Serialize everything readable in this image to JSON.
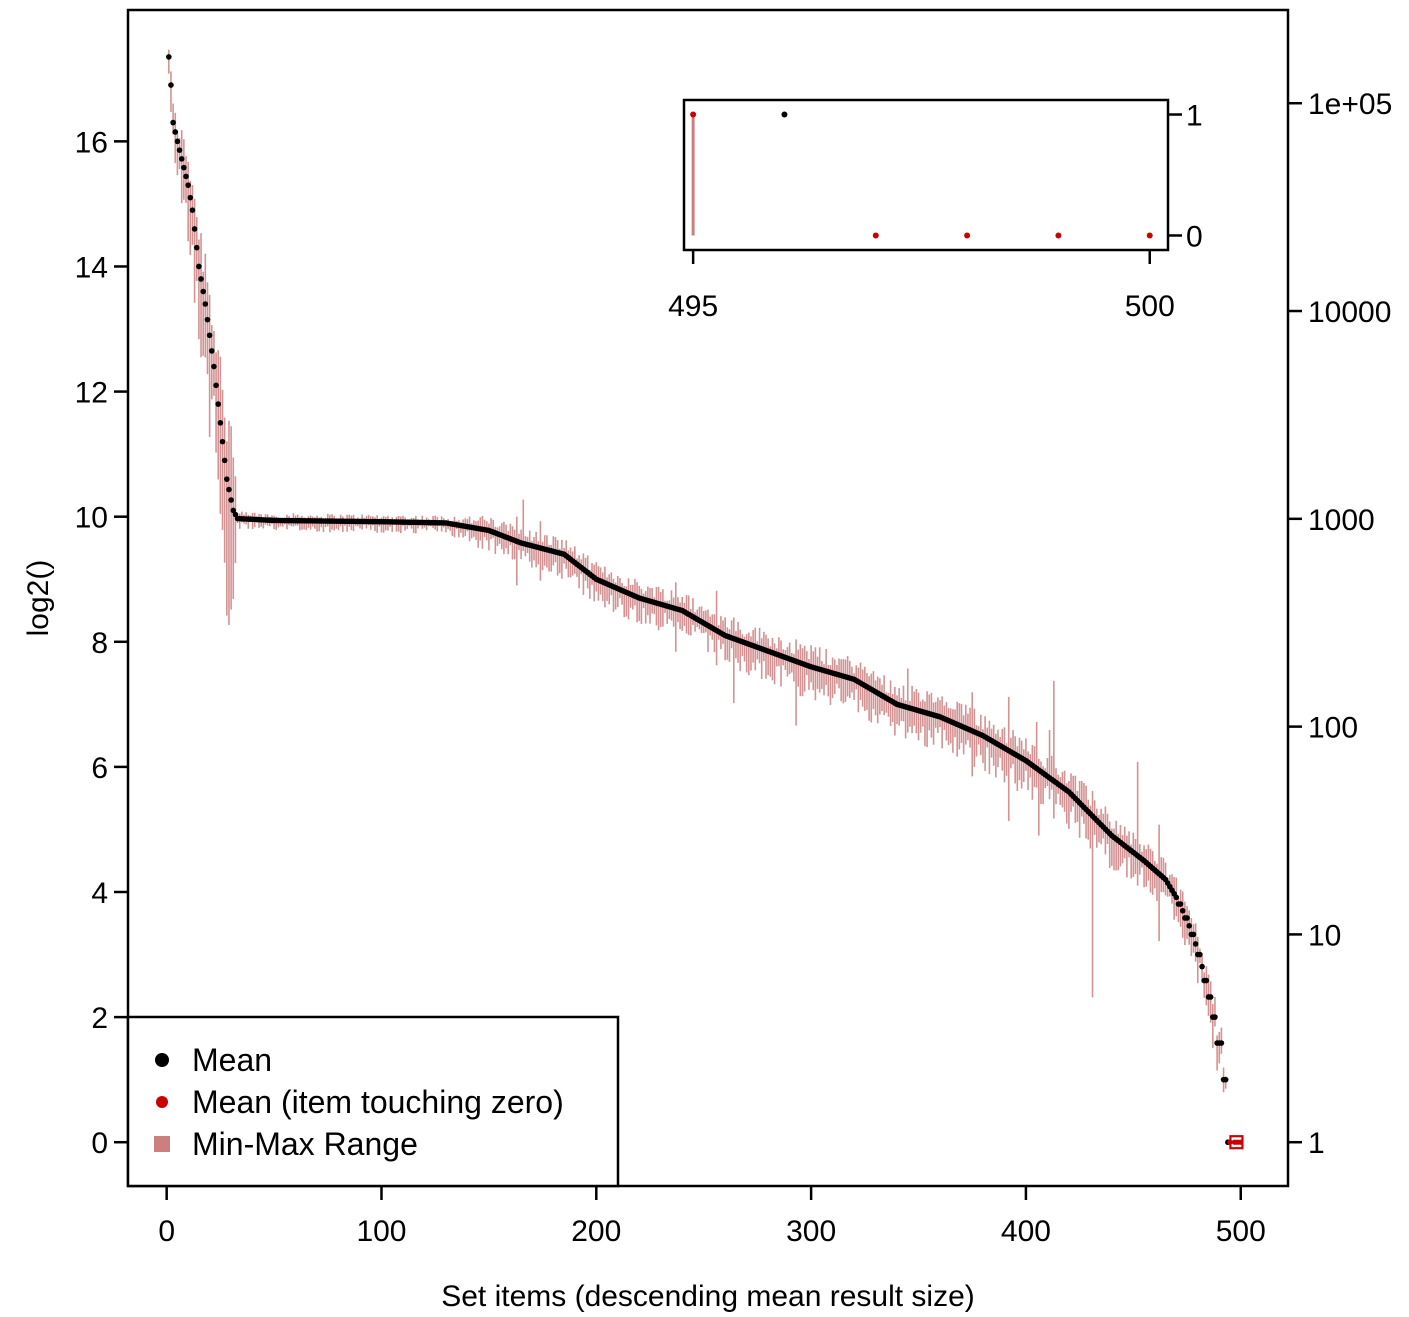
{
  "chart_data": {
    "type": "scatter",
    "xlabel": "Set items (descending mean result size)",
    "ylabel": "log2()",
    "xlim": [
      -18,
      522
    ],
    "ylim": [
      -0.7,
      18.1
    ],
    "x_ticks": [
      0,
      100,
      200,
      300,
      400,
      500
    ],
    "x_tick_labels": [
      "0",
      "100",
      "200",
      "300",
      "400",
      "500"
    ],
    "y_ticks": [
      0,
      2,
      4,
      6,
      8,
      10,
      12,
      14,
      16
    ],
    "y_tick_labels": [
      "0",
      "2",
      "4",
      "6",
      "8",
      "10",
      "12",
      "14",
      "16"
    ],
    "y2_ticks": [
      1,
      10,
      100,
      1000,
      10000,
      100000
    ],
    "y2_tick_labels": [
      "1",
      "10",
      "100",
      "1000",
      "10000",
      "1e+05"
    ],
    "y2_scale": "log",
    "n_items": 500,
    "mean_curve": [
      [
        1,
        17.35
      ],
      [
        2,
        16.9
      ],
      [
        3,
        16.3
      ],
      [
        5,
        16.0
      ],
      [
        10,
        15.3
      ],
      [
        12,
        14.9
      ],
      [
        15,
        14.0
      ],
      [
        18,
        13.4
      ],
      [
        20,
        12.9
      ],
      [
        22,
        12.4
      ],
      [
        25,
        11.5
      ],
      [
        28,
        10.6
      ],
      [
        31,
        10.1
      ],
      [
        33,
        9.97
      ],
      [
        50,
        9.94
      ],
      [
        100,
        9.92
      ],
      [
        130,
        9.9
      ],
      [
        150,
        9.78
      ],
      [
        165,
        9.58
      ],
      [
        185,
        9.4
      ],
      [
        200,
        9.0
      ],
      [
        220,
        8.7
      ],
      [
        240,
        8.5
      ],
      [
        260,
        8.1
      ],
      [
        280,
        7.85
      ],
      [
        300,
        7.6
      ],
      [
        320,
        7.4
      ],
      [
        340,
        7.0
      ],
      [
        360,
        6.8
      ],
      [
        380,
        6.5
      ],
      [
        400,
        6.1
      ],
      [
        420,
        5.6
      ],
      [
        440,
        4.9
      ],
      [
        455,
        4.5
      ],
      [
        465,
        4.2
      ],
      [
        472,
        3.8
      ],
      [
        478,
        3.3
      ],
      [
        482,
        2.8
      ],
      [
        486,
        2.3
      ],
      [
        488,
        2.0
      ],
      [
        490,
        1.6
      ],
      [
        492,
        1.3
      ],
      [
        493,
        1.0
      ],
      [
        494,
        0.0
      ]
    ],
    "range_spread": [
      [
        1,
        0.3
      ],
      [
        30,
        2.0
      ],
      [
        33,
        0.15
      ],
      [
        130,
        0.15
      ],
      [
        150,
        0.3
      ],
      [
        300,
        0.45
      ],
      [
        420,
        0.5
      ],
      [
        470,
        0.4
      ],
      [
        490,
        0.5
      ],
      [
        494,
        0.0
      ]
    ],
    "zero_touch_items": [
      495,
      497,
      498,
      499,
      500
    ],
    "zero_touch_marker_x": 498,
    "series": [
      {
        "name": "Mean",
        "color": "#000000"
      },
      {
        "name": "Mean (item touching zero)",
        "color": "#cc0000"
      },
      {
        "name": "Min-Max Range",
        "color": "#cd7f7f"
      }
    ],
    "legend_position": "bottom-left",
    "inset": {
      "xlim": [
        494.9,
        500.2
      ],
      "ylim": [
        -0.12,
        1.12
      ],
      "x_ticks": [
        495,
        500
      ],
      "x_tick_labels": [
        "495",
        "500"
      ],
      "y_ticks": [
        0,
        1
      ],
      "y_tick_labels": [
        "0",
        "1"
      ],
      "points": [
        {
          "x": 495,
          "y": 1,
          "zero": true,
          "range": [
            0,
            1
          ]
        },
        {
          "x": 496,
          "y": 1,
          "zero": false,
          "range": [
            1,
            1
          ]
        },
        {
          "x": 497,
          "y": 0,
          "zero": true,
          "range": [
            0,
            0
          ]
        },
        {
          "x": 498,
          "y": 0,
          "zero": true,
          "range": [
            0,
            0
          ]
        },
        {
          "x": 499,
          "y": 0,
          "zero": true,
          "range": [
            0,
            0
          ]
        },
        {
          "x": 500,
          "y": 0,
          "zero": true,
          "range": [
            0,
            0
          ]
        }
      ]
    },
    "colors": {
      "mean": "#000000",
      "zero_mean": "#cc0000",
      "range": "#cd7f7f",
      "zero_box": "#cc0000"
    }
  }
}
